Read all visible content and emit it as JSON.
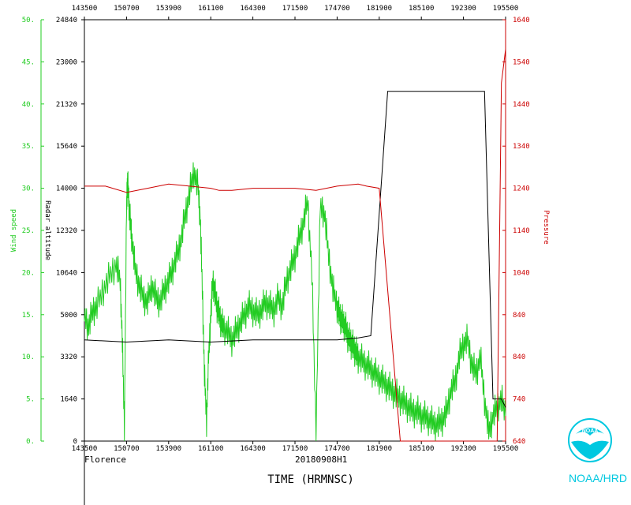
{
  "chart_data": {
    "type": "line",
    "footer": {
      "storm": "Florence",
      "mission": "20180908H1",
      "x_title": "TIME (HRMNSC)",
      "brand": "NOAA/HRD",
      "logo_text": "NOAA"
    },
    "x_axis": {
      "ticks": [
        "143500",
        "150700",
        "153900",
        "161100",
        "164300",
        "171500",
        "174700",
        "181900",
        "185100",
        "192300",
        "195500"
      ],
      "range": [
        0,
        10
      ]
    },
    "axes": {
      "wind": {
        "label": "Wind speed",
        "range": [
          0,
          50
        ],
        "ticks": [
          "0.",
          "5.",
          "10.",
          "15.",
          "20.",
          "25.",
          "30.",
          "35.",
          "40.",
          "45.",
          "50."
        ],
        "color": "#22cc22"
      },
      "altitude": {
        "label": "Radar altitude",
        "range": [
          0,
          10
        ],
        "ticks": [
          "0",
          "1640",
          "3320",
          "5000",
          "10640",
          "12320",
          "14000",
          "15640",
          "21320",
          "23000",
          "24840"
        ],
        "color": "#000000"
      },
      "pressure": {
        "label": "Pressure",
        "range": [
          0,
          10
        ],
        "ticks": [
          "640",
          "740",
          "840",
          "840",
          "1040",
          "1140",
          "1240",
          "1340",
          "1440",
          "1540",
          "1640"
        ],
        "color": "#cc0000"
      }
    },
    "series": [
      {
        "name": "Wind speed",
        "axis": "wind",
        "color": "#22cc22",
        "x": [
          0,
          0.1,
          0.2,
          0.3,
          0.45,
          0.6,
          0.75,
          0.85,
          0.9,
          0.95,
          1.0,
          1.02,
          1.05,
          1.08,
          1.12,
          1.2,
          1.3,
          1.4,
          1.5,
          1.6,
          1.7,
          1.8,
          1.9,
          2.0,
          2.1,
          2.2,
          2.3,
          2.4,
          2.5,
          2.6,
          2.7,
          2.75,
          2.8,
          2.85,
          2.9,
          2.95,
          3.0,
          3.05,
          3.1,
          3.15,
          3.2,
          3.25,
          3.3,
          3.4,
          3.5,
          3.6,
          3.7,
          3.8,
          3.9,
          4.0,
          4.1,
          4.2,
          4.3,
          4.4,
          4.5,
          4.6,
          4.7,
          4.8,
          4.9,
          5.0,
          5.1,
          5.2,
          5.3,
          5.4,
          5.5,
          5.6,
          5.7,
          5.8,
          5.9,
          6.0,
          6.05,
          6.1,
          6.15,
          6.2,
          6.25,
          6.3,
          6.35,
          6.4,
          6.45,
          6.5,
          6.6,
          6.7,
          6.8,
          6.9,
          7.0,
          7.1,
          7.2,
          7.3,
          7.4,
          7.5,
          7.6,
          7.7,
          7.8,
          7.9,
          8.0,
          8.1,
          8.2,
          8.3,
          8.4,
          8.5,
          8.6,
          8.7,
          8.8,
          8.9,
          9.0,
          9.1,
          9.2,
          9.3,
          9.4,
          9.5,
          9.6,
          9.7,
          9.8,
          9.9,
          10.0
        ],
        "values": [
          15.0,
          13.5,
          15.5,
          16.0,
          18.0,
          19.5,
          21.0,
          19.0,
          12.0,
          1.5,
          27.5,
          31.0,
          29.0,
          26.5,
          24.5,
          20.5,
          18.5,
          17.0,
          16.5,
          18.5,
          17.0,
          16.5,
          18.0,
          19.0,
          20.5,
          22.0,
          24.0,
          27.0,
          29.5,
          32.0,
          30.0,
          26.5,
          18.0,
          8.0,
          2.5,
          10.0,
          15.0,
          19.0,
          17.5,
          16.0,
          15.0,
          14.0,
          13.5,
          13.0,
          12.0,
          13.0,
          14.0,
          15.0,
          16.0,
          15.5,
          15.0,
          15.5,
          16.5,
          16.0,
          15.5,
          17.0,
          16.0,
          19.0,
          20.5,
          22.0,
          24.0,
          26.0,
          28.5,
          20.0,
          1.0,
          28.0,
          27.0,
          22.0,
          18.0,
          16.0,
          15.0,
          14.5,
          14.0,
          13.5,
          12.5,
          12.0,
          11.5,
          11.0,
          10.5,
          10.0,
          9.5,
          9.0,
          8.5,
          8.0,
          7.5,
          7.0,
          6.5,
          6.0,
          5.5,
          5.0,
          4.5,
          4.0,
          3.5,
          3.5,
          3.0,
          2.8,
          2.5,
          2.0,
          2.0,
          2.5,
          3.5,
          6.0,
          7.0,
          10.0,
          11.5,
          12.0,
          9.0,
          8.0,
          10.0,
          5.0,
          1.0,
          3.0,
          4.0,
          5.0,
          3.0
        ],
        "noise": [
          0.8,
          1.0,
          1.2,
          1.5,
          2.0
        ]
      },
      {
        "name": "Radar altitude",
        "axis": "altitude",
        "color": "#000000",
        "x": [
          0,
          1.0,
          2.0,
          3.0,
          4.0,
          5.0,
          6.0,
          6.5,
          6.8,
          7.2,
          8.0,
          9.0,
          9.5,
          9.7,
          9.9,
          10.0
        ],
        "values": [
          2.4,
          2.35,
          2.4,
          2.35,
          2.4,
          2.4,
          2.4,
          2.45,
          2.5,
          8.3,
          8.3,
          8.3,
          8.3,
          1.0,
          1.0,
          0.8
        ]
      },
      {
        "name": "Pressure",
        "axis": "pressure",
        "color": "#cc0000",
        "x": [
          0,
          0.5,
          1.0,
          1.5,
          2.0,
          2.5,
          3.0,
          3.2,
          3.5,
          4.0,
          5.0,
          5.5,
          6.0,
          6.5,
          6.7,
          7.0,
          7.5,
          8.0,
          8.5,
          9.0,
          9.5,
          9.8,
          9.9,
          10.0
        ],
        "values": [
          6.05,
          6.05,
          5.9,
          6.0,
          6.1,
          6.05,
          6.0,
          5.95,
          5.95,
          6.0,
          6.0,
          5.95,
          6.05,
          6.1,
          6.05,
          6.0,
          0.0,
          0.0,
          0.0,
          0.0,
          0.0,
          0.0,
          8.5,
          9.3
        ]
      }
    ]
  }
}
